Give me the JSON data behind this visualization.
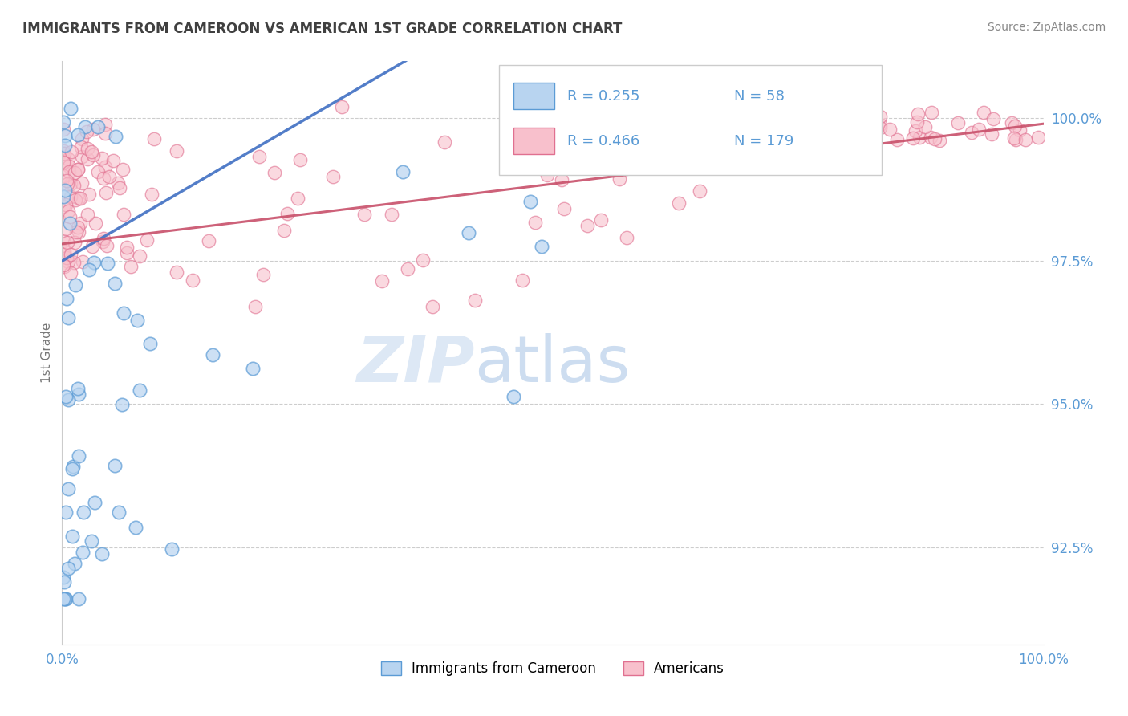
{
  "title": "IMMIGRANTS FROM CAMEROON VS AMERICAN 1ST GRADE CORRELATION CHART",
  "source_text": "Source: ZipAtlas.com",
  "ylabel": "1st Grade",
  "ytick_labels": [
    "92.5%",
    "95.0%",
    "97.5%",
    "100.0%"
  ],
  "ytick_values": [
    0.925,
    0.95,
    0.975,
    1.0
  ],
  "xmin": 0.0,
  "xmax": 1.0,
  "ymin": 0.908,
  "ymax": 1.01,
  "legend_r1": "R = 0.255",
  "legend_n1": "N = 58",
  "legend_r2": "R = 0.466",
  "legend_n2": "N = 179",
  "color_blue_fill": "#B8D4F0",
  "color_blue_edge": "#5B9BD5",
  "color_pink_fill": "#F8C0CC",
  "color_pink_edge": "#E07090",
  "color_blue_line": "#4472C4",
  "color_pink_line": "#C8506A",
  "color_title": "#404040",
  "color_axis_label": "#5B9BD5",
  "color_grid": "#C8C8C8",
  "legend_label1": "Immigrants from Cameroon",
  "legend_label2": "Americans",
  "blue_seed": 42,
  "pink_seed": 99
}
